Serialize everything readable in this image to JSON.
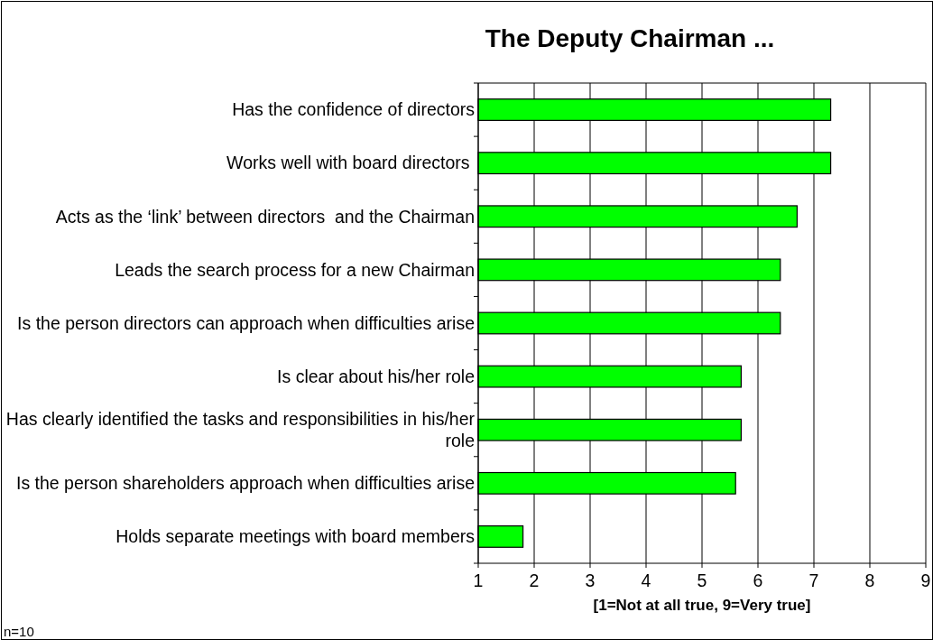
{
  "chart_data": {
    "type": "bar",
    "orientation": "horizontal",
    "title": "The Deputy Chairman ...",
    "xlabel": "[1=Not at all true, 9=Very true]",
    "categories": [
      "Has the confidence of directors",
      "Works well with board directors ",
      "Acts as the ‘link’ between directors  and the Chairman",
      "Leads the search process for a new Chairman",
      "Is the person directors can approach when difficulties arise",
      "Is clear about his/her role",
      "Has clearly identified the tasks and responsibilities in his/her role",
      "Is the person shareholders approach when difficulties arise",
      "Holds separate meetings with board members"
    ],
    "values": [
      7.3,
      7.3,
      6.7,
      6.4,
      6.4,
      5.7,
      5.7,
      5.6,
      1.8
    ],
    "color": "#00ff00",
    "xlim": [
      1,
      9
    ],
    "xticks": [
      1,
      2,
      3,
      4,
      5,
      6,
      7,
      8,
      9
    ],
    "grid": "x",
    "annotations": [
      "n=10"
    ]
  }
}
